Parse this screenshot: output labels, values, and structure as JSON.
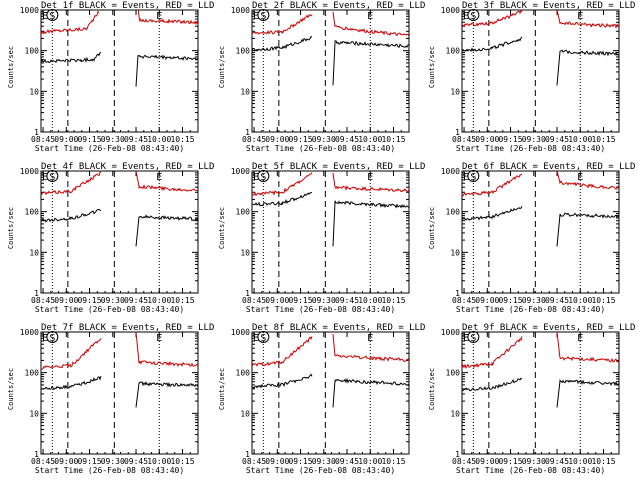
{
  "chart_data": [
    {
      "type": "line",
      "title": "Det 1f BLACK = Events, RED = LLD",
      "xlabel": "Start Time (26-Feb-08 08:43:40)",
      "ylabel": "Counts/sec",
      "xticks": [
        "08:45",
        "09:00",
        "09:15",
        "09:30",
        "09:45",
        "10:00",
        "10:15"
      ],
      "yticks": [
        "1",
        "10",
        "100",
        "1000"
      ],
      "ylim": [
        1,
        1000
      ],
      "xlim": [
        "08:43:40",
        "10:25:00"
      ],
      "markers": [
        {
          "label": "E",
          "time": "08:43:40"
        },
        {
          "label": "S",
          "time": "09:01:00"
        },
        {
          "label": "E",
          "time": "10:00:00"
        }
      ],
      "series": [
        {
          "color": "#cc0000",
          "pre": [
            [
              0,
              280
            ],
            [
              15,
              310
            ],
            [
              45,
              345
            ],
            [
              58,
              900
            ]
          ],
          "post": [
            [
              95,
              1000
            ],
            [
              97,
              1040
            ],
            [
              99,
              560
            ],
            [
              122,
              530
            ],
            [
              148,
              510
            ],
            [
              162,
              470
            ]
          ]
        },
        {
          "color": "#000000",
          "pre": [
            [
              0,
              55
            ],
            [
              40,
              58
            ],
            [
              53,
              62
            ],
            [
              60,
              95
            ]
          ],
          "post": [
            [
              95,
              13
            ],
            [
              97,
              78
            ],
            [
              99,
              72
            ],
            [
              125,
              68
            ],
            [
              162,
              62
            ]
          ]
        }
      ]
    },
    {
      "type": "line",
      "title": "Det 2f BLACK = Events, RED = LLD",
      "xlabel": "Start Time (26-Feb-08 08:43:40)",
      "ylabel": "Counts/sec",
      "xticks": [
        "08:45",
        "09:00",
        "09:15",
        "09:30",
        "09:45",
        "10:00",
        "10:15"
      ],
      "yticks": [
        "1",
        "10",
        "100",
        "1000"
      ],
      "ylim": [
        1,
        1000
      ],
      "xlim": [
        "08:43:40",
        "10:25:00"
      ],
      "markers": [
        {
          "label": "E",
          "time": "08:43:40"
        },
        {
          "label": "S",
          "time": "09:01:00"
        },
        {
          "label": "E",
          "time": "10:00:00"
        }
      ],
      "series": [
        {
          "color": "#cc0000",
          "pre": [
            [
              0,
              270
            ],
            [
              30,
              290
            ],
            [
              60,
              800
            ]
          ],
          "post": [
            [
              81,
              900
            ],
            [
              83,
              390
            ],
            [
              120,
              290
            ],
            [
              162,
              230
            ]
          ]
        },
        {
          "color": "#000000",
          "pre": [
            [
              0,
              105
            ],
            [
              30,
              118
            ],
            [
              60,
              210
            ]
          ],
          "post": [
            [
              81,
              14
            ],
            [
              83,
              160
            ],
            [
              120,
              145
            ],
            [
              162,
              125
            ]
          ]
        }
      ]
    },
    {
      "type": "line",
      "title": "Det 3f BLACK = Events, RED = LLD",
      "xlabel": "Start Time (26-Feb-08 08:43:40)",
      "ylabel": "Counts/sec",
      "xticks": [
        "08:45",
        "09:00",
        "09:15",
        "09:30",
        "09:45",
        "10:00",
        "10:15"
      ],
      "yticks": [
        "1",
        "10",
        "100",
        "1000"
      ],
      "ylim": [
        1,
        1000
      ],
      "xlim": [
        "08:43:40",
        "10:25:00"
      ],
      "markers": [
        {
          "label": "E",
          "time": "08:43:40"
        },
        {
          "label": "S",
          "time": "09:01:00"
        },
        {
          "label": "E",
          "time": "10:00:00"
        }
      ],
      "series": [
        {
          "color": "#cc0000",
          "pre": [
            [
              0,
              420
            ],
            [
              30,
              480
            ],
            [
              60,
              900
            ]
          ],
          "post": [
            [
              95,
              1000
            ],
            [
              98,
              480
            ],
            [
              130,
              430
            ],
            [
              162,
              400
            ]
          ]
        },
        {
          "color": "#000000",
          "pre": [
            [
              0,
              100
            ],
            [
              30,
              115
            ],
            [
              60,
              200
            ]
          ],
          "post": [
            [
              95,
              14
            ],
            [
              98,
              95
            ],
            [
              130,
              88
            ],
            [
              162,
              82
            ]
          ]
        }
      ]
    },
    {
      "type": "line",
      "title": "Det 4f BLACK = Events, RED = LLD",
      "xlabel": "Start Time (26-Feb-08 08:43:40)",
      "ylabel": "Counts/sec",
      "xticks": [
        "08:45",
        "09:00",
        "09:15",
        "09:30",
        "09:45",
        "10:00",
        "10:15"
      ],
      "yticks": [
        "1",
        "10",
        "100",
        "1000"
      ],
      "ylim": [
        1,
        1000
      ],
      "xlim": [
        "08:43:40",
        "10:25:00"
      ],
      "markers": [
        {
          "label": "E",
          "time": "08:43:40"
        },
        {
          "label": "S",
          "time": "09:01:00"
        },
        {
          "label": "E",
          "time": "10:00:00"
        }
      ],
      "series": [
        {
          "color": "#cc0000",
          "pre": [
            [
              0,
              280
            ],
            [
              30,
              320
            ],
            [
              60,
              900
            ]
          ],
          "post": [
            [
              95,
              1000
            ],
            [
              98,
              420
            ],
            [
              130,
              360
            ],
            [
              162,
              340
            ]
          ]
        },
        {
          "color": "#000000",
          "pre": [
            [
              0,
              60
            ],
            [
              30,
              68
            ],
            [
              60,
              110
            ]
          ],
          "post": [
            [
              95,
              14
            ],
            [
              98,
              75
            ],
            [
              130,
              70
            ],
            [
              162,
              65
            ]
          ]
        }
      ]
    },
    {
      "type": "line",
      "title": "Det 5f BLACK = Events, RED = LLD",
      "xlabel": "Start Time (26-Feb-08 08:43:40)",
      "ylabel": "Counts/sec",
      "xticks": [
        "08:45",
        "09:00",
        "09:15",
        "09:30",
        "09:45",
        "10:00",
        "10:15"
      ],
      "yticks": [
        "1",
        "10",
        "100",
        "1000"
      ],
      "ylim": [
        1,
        1000
      ],
      "xlim": [
        "08:43:40",
        "10:25:00"
      ],
      "markers": [
        {
          "label": "E",
          "time": "08:43:40"
        },
        {
          "label": "S",
          "time": "09:01:00"
        },
        {
          "label": "E",
          "time": "10:00:00"
        }
      ],
      "series": [
        {
          "color": "#cc0000",
          "pre": [
            [
              0,
              270
            ],
            [
              30,
              300
            ],
            [
              60,
              850
            ]
          ],
          "post": [
            [
              81,
              900
            ],
            [
              83,
              400
            ],
            [
              120,
              360
            ],
            [
              162,
              330
            ]
          ]
        },
        {
          "color": "#000000",
          "pre": [
            [
              0,
              150
            ],
            [
              30,
              160
            ],
            [
              60,
              300
            ]
          ],
          "post": [
            [
              81,
              14
            ],
            [
              83,
              170
            ],
            [
              120,
              150
            ],
            [
              162,
              130
            ]
          ]
        }
      ]
    },
    {
      "type": "line",
      "title": "Det 6f BLACK = Events, RED = LLD",
      "xlabel": "Start Time (26-Feb-08 08:43:40)",
      "ylabel": "Counts/sec",
      "xticks": [
        "08:45",
        "09:00",
        "09:15",
        "09:30",
        "09:45",
        "10:00",
        "10:15"
      ],
      "yticks": [
        "1",
        "10",
        "100",
        "1000"
      ],
      "ylim": [
        1,
        1000
      ],
      "xlim": [
        "08:43:40",
        "10:25:00"
      ],
      "markers": [
        {
          "label": "E",
          "time": "08:43:40"
        },
        {
          "label": "S",
          "time": "09:01:00"
        },
        {
          "label": "E",
          "time": "10:00:00"
        }
      ],
      "series": [
        {
          "color": "#cc0000",
          "pre": [
            [
              0,
              260
            ],
            [
              30,
              300
            ],
            [
              60,
              850
            ]
          ],
          "post": [
            [
              95,
              1000
            ],
            [
              98,
              520
            ],
            [
              130,
              420
            ],
            [
              162,
              380
            ]
          ]
        },
        {
          "color": "#000000",
          "pre": [
            [
              0,
              65
            ],
            [
              30,
              75
            ],
            [
              60,
              130
            ]
          ],
          "post": [
            [
              95,
              14
            ],
            [
              98,
              85
            ],
            [
              130,
              80
            ],
            [
              162,
              75
            ]
          ]
        }
      ]
    },
    {
      "type": "line",
      "title": "Det 7f BLACK = Events, RED = LLD",
      "xlabel": "Start Time (26-Feb-08 08:43:40)",
      "ylabel": "Counts/sec",
      "xticks": [
        "08:45",
        "09:00",
        "09:15",
        "09:30",
        "09:45",
        "10:00",
        "10:15"
      ],
      "yticks": [
        "1",
        "10",
        "100",
        "1000"
      ],
      "ylim": [
        1,
        1000
      ],
      "xlim": [
        "08:43:40",
        "10:25:00"
      ],
      "markers": [
        {
          "label": "E",
          "time": "08:43:40"
        },
        {
          "label": "S",
          "time": "09:01:00"
        },
        {
          "label": "E",
          "time": "10:00:00"
        }
      ],
      "series": [
        {
          "color": "#cc0000",
          "pre": [
            [
              0,
              130
            ],
            [
              30,
              150
            ],
            [
              60,
              700
            ]
          ],
          "post": [
            [
              95,
              1000
            ],
            [
              98,
              180
            ],
            [
              130,
              165
            ],
            [
              162,
              150
            ]
          ]
        },
        {
          "color": "#000000",
          "pre": [
            [
              0,
              40
            ],
            [
              30,
              45
            ],
            [
              60,
              75
            ]
          ],
          "post": [
            [
              95,
              14
            ],
            [
              98,
              55
            ],
            [
              130,
              50
            ],
            [
              162,
              48
            ]
          ]
        }
      ]
    },
    {
      "type": "line",
      "title": "Det 8f BLACK = Events, RED = LLD",
      "xlabel": "Start Time (26-Feb-08 08:43:40)",
      "ylabel": "Counts/sec",
      "xticks": [
        "08:45",
        "09:00",
        "09:15",
        "09:30",
        "09:45",
        "10:00",
        "10:15"
      ],
      "yticks": [
        "1",
        "10",
        "100",
        "1000"
      ],
      "ylim": [
        1,
        1000
      ],
      "xlim": [
        "08:43:40",
        "10:25:00"
      ],
      "markers": [
        {
          "label": "E",
          "time": "08:43:40"
        },
        {
          "label": "S",
          "time": "09:01:00"
        },
        {
          "label": "E",
          "time": "10:00:00"
        }
      ],
      "series": [
        {
          "color": "#cc0000",
          "pre": [
            [
              0,
              150
            ],
            [
              30,
              180
            ],
            [
              60,
              750
            ]
          ],
          "post": [
            [
              81,
              900
            ],
            [
              83,
              260
            ],
            [
              120,
              230
            ],
            [
              162,
              200
            ]
          ]
        },
        {
          "color": "#000000",
          "pre": [
            [
              0,
              45
            ],
            [
              30,
              50
            ],
            [
              60,
              85
            ]
          ],
          "post": [
            [
              81,
              14
            ],
            [
              83,
              65
            ],
            [
              120,
              58
            ],
            [
              162,
              52
            ]
          ]
        }
      ]
    },
    {
      "type": "line",
      "title": "Det 9f BLACK = Events, RED = LLD",
      "xlabel": "Start Time (26-Feb-08 08:43:40)",
      "ylabel": "Counts/sec",
      "xticks": [
        "08:45",
        "09:00",
        "09:15",
        "09:30",
        "09:45",
        "10:00",
        "10:15"
      ],
      "yticks": [
        "1",
        "10",
        "100",
        "1000"
      ],
      "ylim": [
        1,
        1000
      ],
      "xlim": [
        "08:43:40",
        "10:25:00"
      ],
      "markers": [
        {
          "label": "E",
          "time": "08:43:40"
        },
        {
          "label": "S",
          "time": "09:01:00"
        },
        {
          "label": "E",
          "time": "10:00:00"
        }
      ],
      "series": [
        {
          "color": "#cc0000",
          "pre": [
            [
              0,
              140
            ],
            [
              30,
              165
            ],
            [
              60,
              720
            ]
          ],
          "post": [
            [
              95,
              1000
            ],
            [
              98,
              230
            ],
            [
              130,
              210
            ],
            [
              162,
              190
            ]
          ]
        },
        {
          "color": "#000000",
          "pre": [
            [
              0,
              38
            ],
            [
              30,
              42
            ],
            [
              60,
              70
            ]
          ],
          "post": [
            [
              95,
              14
            ],
            [
              98,
              62
            ],
            [
              130,
              57
            ],
            [
              162,
              52
            ]
          ]
        }
      ]
    }
  ]
}
